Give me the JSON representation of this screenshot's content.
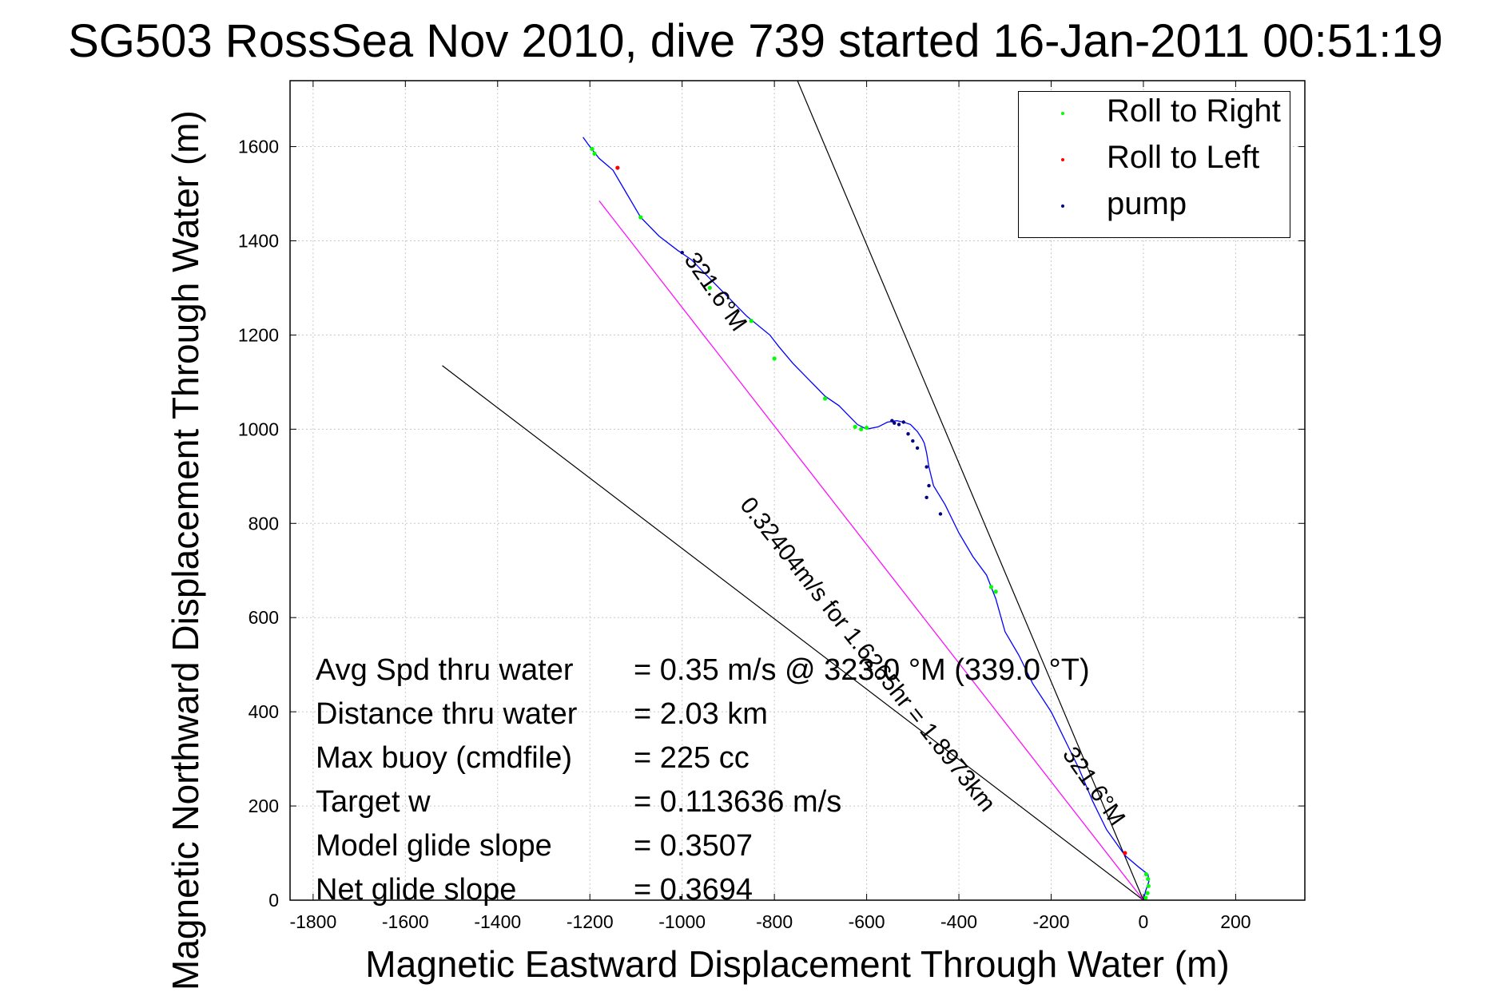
{
  "chart_data": {
    "type": "line",
    "title": "SG503 RossSea Nov 2010, dive 739 started 16-Jan-2011 00:51:19",
    "xlabel": "Magnetic Eastward Displacement Through Water (m)",
    "ylabel": "Magnetic Northward Displacement Through Water (m)",
    "xlim": [
      -1850,
      350
    ],
    "ylim": [
      0,
      1740
    ],
    "x_ticks": [
      -1800,
      -1600,
      -1400,
      -1200,
      -1000,
      -800,
      -600,
      -400,
      -200,
      0,
      200
    ],
    "y_ticks": [
      0,
      200,
      400,
      600,
      800,
      1000,
      1200,
      1400,
      1600
    ],
    "grid": true,
    "legend_position": "top-right",
    "legend": [
      {
        "label": "Roll to Right",
        "color": "#00ff00"
      },
      {
        "label": "Roll to Left",
        "color": "#ff0000"
      },
      {
        "label": "pump",
        "color": "#000080"
      }
    ],
    "track": {
      "color": "#0000ff",
      "x": [
        0,
        5,
        12,
        10,
        -10,
        -40,
        -80,
        -110,
        -140,
        -170,
        -200,
        -240,
        -270,
        -300,
        -320,
        -340,
        -370,
        -400,
        -430,
        -455,
        -465,
        -470,
        -475,
        -480,
        -490,
        -505,
        -520,
        -535,
        -555,
        -575,
        -600,
        -620,
        -640,
        -660,
        -690,
        -720,
        -760,
        -790,
        -810,
        -860,
        -900,
        -940,
        -980,
        -1010,
        -1050,
        -1090,
        -1120,
        -1150,
        -1180,
        -1200,
        -1215
      ],
      "y": [
        0,
        20,
        40,
        55,
        70,
        95,
        150,
        210,
        280,
        340,
        400,
        460,
        520,
        570,
        640,
        690,
        730,
        780,
        840,
        880,
        920,
        950,
        970,
        980,
        995,
        1010,
        1015,
        1018,
        1015,
        1005,
        1000,
        1010,
        1030,
        1050,
        1070,
        1100,
        1140,
        1175,
        1200,
        1240,
        1280,
        1320,
        1360,
        1380,
        1410,
        1450,
        1500,
        1550,
        1575,
        1600,
        1620
      ]
    },
    "roll_right_points": {
      "color": "#00ff00",
      "x": [
        5,
        9,
        11,
        10,
        6,
        -330,
        -320,
        -600,
        -612,
        -625,
        -690,
        -800,
        -850,
        -940,
        -1090,
        -1195,
        -1190
      ],
      "y": [
        5,
        15,
        30,
        45,
        55,
        665,
        655,
        1003,
        1000,
        1005,
        1065,
        1150,
        1230,
        1300,
        1450,
        1595,
        1585
      ]
    },
    "roll_left_points": {
      "color": "#ff0000",
      "x": [
        -40,
        -1140
      ],
      "y": [
        100,
        1555
      ]
    },
    "pump_points": {
      "color": "#000080",
      "x": [
        -520,
        -530,
        -540,
        -545,
        -510,
        -500,
        -490,
        -470,
        -465,
        -470,
        -440,
        -1000
      ],
      "y": [
        1015,
        1010,
        1013,
        1018,
        990,
        975,
        960,
        920,
        880,
        855,
        820,
        1375
      ]
    },
    "heading_lines": [
      {
        "x": [
          0,
          -1520
        ],
        "y": [
          0,
          1135
        ],
        "color": "#000000"
      },
      {
        "x": [
          0,
          -750
        ],
        "y": [
          0,
          1740
        ],
        "color": "#000000"
      },
      {
        "x": [
          0,
          -1180
        ],
        "y": [
          0,
          1485
        ],
        "color": "#ff00ff"
      }
    ],
    "annotations": [
      {
        "text": "321.6°M",
        "x": -930,
        "y": 1290,
        "angle": 55
      },
      {
        "text": "0.32404m/s for 1.6265hr = 1.8973km",
        "x": -600,
        "y": 520,
        "angle": 51.5
      },
      {
        "text": "321.6°M",
        "x": -110,
        "y": 240,
        "angle": 55
      }
    ]
  },
  "stats": [
    {
      "label": "Avg Spd thru water",
      "value": "=  0.35 m/s @ 323.0 °M (339.0 °T)"
    },
    {
      "label": "Distance thru water",
      "value": "=  2.03 km"
    },
    {
      "label": "Max buoy (cmdfile)",
      "value": "= 225 cc"
    },
    {
      "label": "Target w",
      "value": "= 0.113636 m/s"
    },
    {
      "label": "Model glide slope",
      "value": "= 0.3507"
    },
    {
      "label": "Net glide slope",
      "value": "= 0.3694"
    }
  ]
}
